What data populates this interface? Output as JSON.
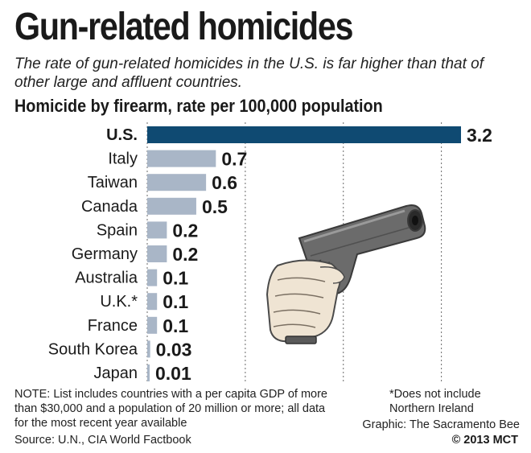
{
  "header": {
    "title": "Gun-related homicides",
    "subtitle": "The rate of gun-related homicides in the U.S. is far higher than that of other large and affluent countries."
  },
  "colors": {
    "highlight_bar": "#0f4a72",
    "other_bars": "#a9b6c7",
    "gridline": "#6a6a6a"
  },
  "illustration": {
    "icon": "hand-holding-pistol-icon"
  },
  "chart_data": {
    "type": "bar",
    "orientation": "horizontal",
    "title": "Homicide by firearm, rate per 100,000 population",
    "categories": [
      "U.S.",
      "Italy",
      "Taiwan",
      "Canada",
      "Spain",
      "Germany",
      "Australia",
      "U.K.*",
      "France",
      "South Korea",
      "Japan"
    ],
    "values": [
      3.2,
      0.7,
      0.6,
      0.5,
      0.2,
      0.2,
      0.1,
      0.1,
      0.1,
      0.03,
      0.01
    ],
    "value_labels": [
      "3.2",
      "0.7",
      "0.6",
      "0.5",
      "0.2",
      "0.2",
      "0.1",
      "0.1",
      "0.1",
      "0.03",
      "0.01"
    ],
    "highlight": "U.S.",
    "xlim": [
      0,
      3.2
    ],
    "gridlines": [
      1,
      2,
      3
    ],
    "grid": "dashed vertical",
    "xlabel": "",
    "ylabel": ""
  },
  "footer": {
    "note": "NOTE: List includes countries with a per capita GDP of more than $30,000 and a population of 20 million or more; all data for the most recent year available",
    "source": "Source: U.N., CIA World Factbook",
    "footnote": "*Does not include Northern Ireland",
    "credit": "Graphic: The Sacramento Bee",
    "copyright": "© 2013 MCT"
  }
}
